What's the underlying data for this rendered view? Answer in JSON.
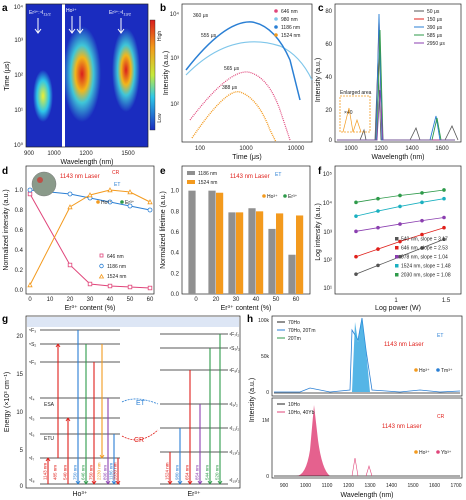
{
  "panels": {
    "a": {
      "label": "a",
      "xlabel": "Wavelength (nm)",
      "ylabel": "Time (μs)",
      "xticks": [
        "900",
        "1000",
        "1200",
        "1500"
      ],
      "yticks": [
        "10⁰",
        "10¹",
        "10²",
        "10³",
        "10⁴"
      ],
      "ann_er1": "Er³⁺:⁴I",
      "ann_er1_sub": "11/2",
      "ann_ho": "Ho³⁺",
      "ann_ho_sub": "⁵I",
      "ann_er2": "Er³⁺:⁴I",
      "ann_er2_sub": "13/2",
      "cbar_high": "High",
      "cbar_low": "Low"
    },
    "b": {
      "label": "b",
      "xlabel": "Time (μs)",
      "ylabel": "Intensity (a.u.)",
      "xticks": [
        "100",
        "1000",
        "10000"
      ],
      "yticks": [
        "10²",
        "10³",
        "10⁴"
      ],
      "legend": [
        "646 nm",
        "980 nm",
        "1186 nm",
        "1524 nm"
      ],
      "lifetimes": [
        "360 μs",
        "555 μs",
        "565 μs",
        "388 μs"
      ]
    },
    "c": {
      "label": "c",
      "xlabel": "Wavelength (nm)",
      "ylabel": "Intensity (a.u.)",
      "xticks": [
        "1000",
        "1200",
        "1400",
        "1600"
      ],
      "yticks": [
        "0",
        "20",
        "40",
        "60",
        "80"
      ],
      "legend": [
        "50 μs",
        "150 μs",
        "390 μs",
        "585 μs",
        "2950 μs"
      ],
      "enlarged": "Enlarged area",
      "x40": "×40"
    },
    "d": {
      "label": "d",
      "xlabel": "Er³⁺ content (%)",
      "ylabel": "Normalized intensity (a.u.)",
      "xticks": [
        "0",
        "10",
        "20",
        "30",
        "40",
        "50",
        "60"
      ],
      "yticks": [
        "0.0",
        "0.2",
        "0.4",
        "0.6",
        "0.8",
        "1.0"
      ],
      "legend": [
        "646 nm",
        "1186 nm",
        "1524 nm"
      ],
      "laser": "1143 nm Laser",
      "cr": "CR",
      "et": "ET",
      "ho": "Ho³⁺",
      "er": "Er³⁺"
    },
    "e": {
      "label": "e",
      "xlabel": "Er³⁺ content (%)",
      "ylabel": "Normalized lifetime (a.u.)",
      "xticks": [
        "0",
        "20",
        "30",
        "40",
        "50",
        "60"
      ],
      "yticks": [
        "0.0",
        "0.2",
        "0.4",
        "0.6",
        "0.8",
        "1.0"
      ],
      "legend": [
        "1186 nm",
        "1524 nm"
      ],
      "laser": "1143 nm Laser",
      "et": "ET",
      "ho": "Ho³⁺",
      "er": "Er³⁺"
    },
    "f": {
      "label": "f",
      "xlabel": "Log power (W)",
      "ylabel": "Log intensity (a.u.)",
      "xticks": [
        "1",
        "1.5"
      ],
      "yticks": [
        "10¹",
        "10²",
        "10³",
        "10⁴",
        "10⁵"
      ],
      "legend": [
        "540 nm, slope = 3.17",
        "646 nm, slope = 2.53",
        "978 nm, slope = 1.04",
        "1524 nm, slope = 1.48",
        "2030 nm, slope = 1.08"
      ]
    },
    "g": {
      "label": "g",
      "ylabel": "Energy (×10³ cm⁻¹)",
      "yticks": [
        "0",
        "5",
        "10",
        "15",
        "20"
      ],
      "ho": "Ho³⁺",
      "er": "Er³⁺",
      "esa": "ESA",
      "etu": "ETU",
      "et": "ET",
      "cr": "CR",
      "ho_levels": [
        "⁵F₃",
        "⁵S₂",
        "⁵F₅",
        "⁵I₄",
        "⁵I₅",
        "⁵I₆",
        "⁵I₇",
        "⁵I₈"
      ],
      "er_levels": [
        "⁴F₇/₂",
        "⁴S₃/₂",
        "⁴F₉/₂",
        "⁴I₉/₂",
        "⁴I₁₁/₂",
        "⁴I₁₃/₂",
        "⁴I₁₅/₂"
      ],
      "ho_trans": [
        "1143 nm",
        "485 nm",
        "540 nm",
        "750 nm",
        "646 nm",
        "750 nm",
        "2230 nm",
        "896 nm",
        "1186 nm",
        "2030 nm"
      ],
      "er_trans": [
        "1524 nm",
        "980 nm",
        "654 nm",
        "854 nm",
        "544 nm",
        "520 nm"
      ]
    },
    "h": {
      "label": "h",
      "xlabel": "Wavelength (nm)",
      "ylabel": "Intensity (a.u.)",
      "xticks": [
        "900",
        "1000",
        "1100",
        "1200",
        "1300",
        "1400",
        "1500",
        "1600",
        "1700"
      ],
      "top_legend": [
        "70Ho",
        "70Ho, 20Tm",
        "20Tm"
      ],
      "bot_legend": [
        "10Ho",
        "10Ho, 40Yb"
      ],
      "top_yticks": [
        "0",
        "50k",
        "100k"
      ],
      "bot_yticks": [
        "0",
        "1M"
      ],
      "laser": "1143 nm Laser",
      "et": "ET",
      "cr": "CR",
      "ho": "Ho³⁺",
      "tm": "Tm³⁺",
      "yb": "Yb³⁺"
    }
  },
  "colors": {
    "pink": "#e0457a",
    "blue": "#2a7fd4",
    "orange": "#f39a1e",
    "green": "#2e9a4a",
    "teal": "#1ab0c0",
    "red": "#e0201b",
    "gray": "#555555",
    "purple": "#8b3fb0"
  },
  "chart_data": [
    {
      "panel": "d",
      "type": "line",
      "x": [
        0,
        20,
        30,
        40,
        50,
        60
      ],
      "series": [
        {
          "name": "646 nm",
          "values": [
            0.96,
            0.25,
            0.06,
            0.04,
            0.03,
            0.02
          ]
        },
        {
          "name": "1186 nm",
          "values": [
            1.0,
            0.96,
            0.92,
            0.88,
            0.84,
            0.8
          ]
        },
        {
          "name": "1524 nm",
          "values": [
            0.05,
            0.83,
            0.95,
            1.0,
            0.98,
            0.88
          ]
        }
      ],
      "ylim": [
        0,
        1.2
      ]
    },
    {
      "panel": "e",
      "type": "bar",
      "categories": [
        "0",
        "20",
        "30",
        "40",
        "50",
        "60"
      ],
      "series": [
        {
          "name": "1186 nm",
          "values": [
            1.0,
            1.0,
            0.79,
            0.83,
            0.63,
            0.38
          ]
        },
        {
          "name": "1524 nm",
          "values": [
            0,
            0.98,
            0.79,
            0.8,
            0.78,
            0.76
          ]
        }
      ],
      "ylim": [
        0,
        1.2
      ]
    },
    {
      "panel": "f",
      "type": "scatter",
      "x": [
        0.7,
        0.9,
        1.1,
        1.3,
        1.5
      ],
      "series": [
        {
          "name": "540 nm, slope = 3.17",
          "values": [
            30,
            60,
            120,
            240,
            480
          ]
        },
        {
          "name": "646 nm, slope = 2.53",
          "values": [
            120,
            220,
            400,
            700,
            1200
          ]
        },
        {
          "name": "978 nm, slope = 1.04",
          "values": [
            900,
            1200,
            1600,
            2100,
            2700
          ]
        },
        {
          "name": "1524 nm, slope = 1.48",
          "values": [
            3000,
            4500,
            6500,
            9000,
            12000
          ]
        },
        {
          "name": "2030 nm, slope = 1.08",
          "values": [
            9000,
            12000,
            15500,
            19000,
            24000
          ]
        }
      ]
    }
  ]
}
